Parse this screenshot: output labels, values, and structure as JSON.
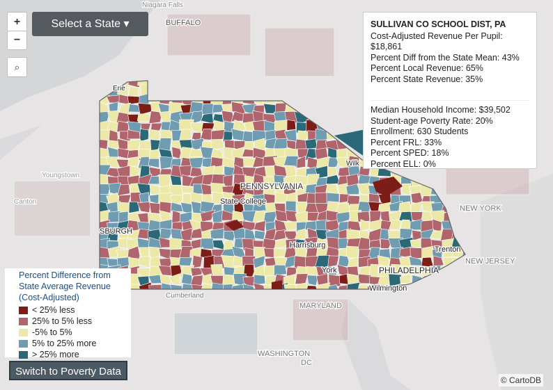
{
  "controls": {
    "zoom_in": "+",
    "zoom_out": "−",
    "select_state": "Select a State ▾",
    "switch_button": "Switch to Poverty Data"
  },
  "map_labels": [
    "Niagara Falls",
    "BUFFALO",
    "Erie",
    "PENNSYLVANIA",
    "State College",
    "Wilk",
    "SBURGH",
    "Harrisburg",
    "York",
    "PHILADELPHIA",
    "Trenton",
    "Wilmington",
    "NEW YORK",
    "NEW JERSEY",
    "MARYLAND",
    "WASHINGTON",
    "DC",
    "Cumberland",
    "Youngstown",
    "Canton"
  ],
  "popup": {
    "title": "SULLIVAN CO SCHOOL DIST, PA",
    "finance": [
      "Cost-Adjusted Revenue Per Pupil: $18,861",
      "Percent Diff from the State Mean: 43%",
      "Percent Local Revenue: 65%",
      "Percent State Revenue: 35%"
    ],
    "demographics": [
      "Median Household Income: $39,502",
      "Student-age Poverty Rate: 20%",
      "Enrollment: 630 Students",
      "Percent FRL: 33%",
      "Percent SPED: 18%",
      "Percent ELL: 0%"
    ]
  },
  "legend": {
    "title": "Percent Difference from State Average Revenue (Cost-Adjusted)",
    "items": [
      {
        "label": "< 25% less",
        "color": "#7d1d17"
      },
      {
        "label": "25% to 5% less",
        "color": "#b0646b"
      },
      {
        "label": "-5% to 5%",
        "color": "#ece8a8"
      },
      {
        "label": "5% to 25% more",
        "color": "#6f9cb0"
      },
      {
        "label": "> 25% more",
        "color": "#2b6978"
      }
    ]
  },
  "attribution": "© CartoDB"
}
